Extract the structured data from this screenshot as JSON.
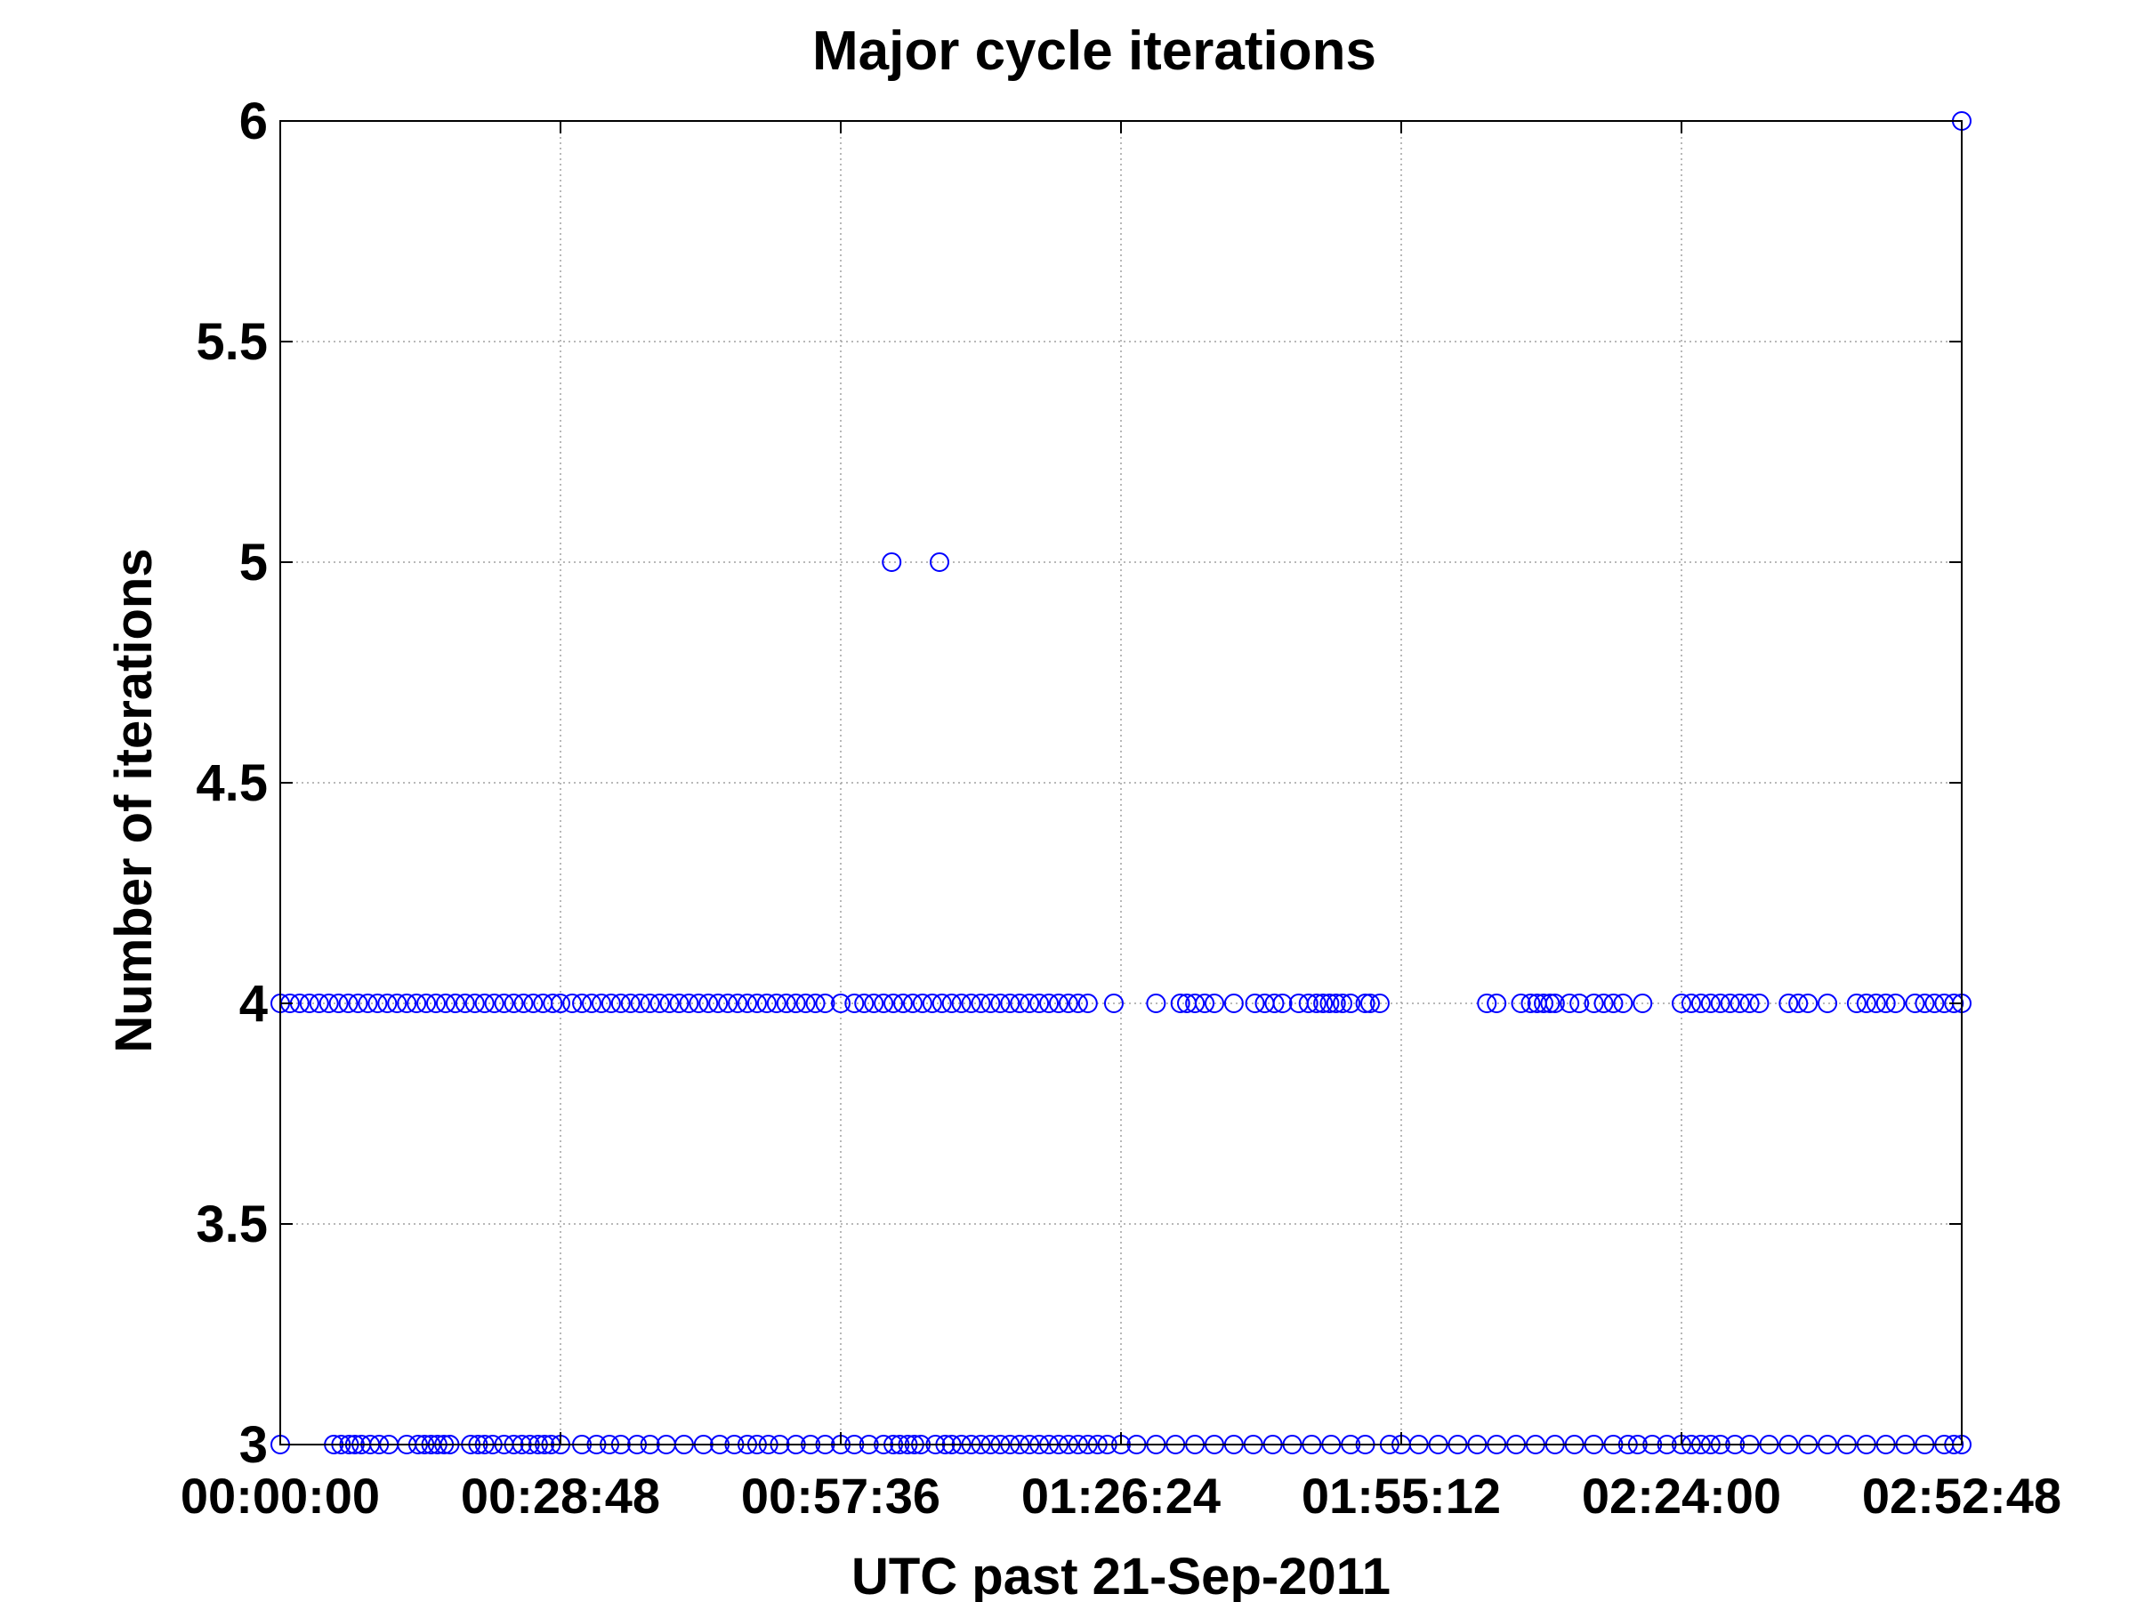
{
  "chart_data": {
    "type": "scatter",
    "title": "Major cycle iterations",
    "xlabel": "UTC past 21-Sep-2011",
    "ylabel": "Number of iterations",
    "x_unit": "time (HH:MM:SS)",
    "xlim": [
      "00:00:00",
      "02:52:48"
    ],
    "ylim": [
      3,
      6
    ],
    "x_ticks": [
      "00:00:00",
      "00:28:48",
      "00:57:36",
      "01:26:24",
      "01:55:12",
      "02:24:00",
      "02:52:48"
    ],
    "y_ticks": [
      "3",
      "3.5",
      "4",
      "4.5",
      "5",
      "5.5",
      "6"
    ],
    "grid": true,
    "marker": "circle-open",
    "marker_color": "#0000ff",
    "series": [
      {
        "y": 3,
        "x": [
          "00:00:00",
          "00:05:30",
          "00:06:15",
          "00:07:05",
          "00:07:40",
          "00:08:20",
          "00:09:15",
          "00:10:10",
          "00:11:10",
          "00:13:00",
          "00:14:10",
          "00:14:50",
          "00:15:30",
          "00:16:10",
          "00:16:50",
          "00:17:25",
          "00:19:35",
          "00:20:20",
          "00:21:00",
          "00:21:50",
          "00:23:00",
          "00:24:00",
          "00:24:50",
          "00:25:40",
          "00:26:30",
          "00:27:10",
          "00:27:50",
          "00:28:48",
          "00:31:00",
          "00:32:30",
          "00:33:50",
          "00:35:00",
          "00:36:40",
          "00:38:00",
          "00:39:40",
          "00:41:30",
          "00:43:30",
          "00:45:10",
          "00:46:40",
          "00:48:00",
          "00:49:00",
          "00:50:10",
          "00:51:20",
          "00:53:00",
          "00:54:30",
          "00:56:00",
          "00:57:36",
          "00:59:00",
          "01:00:30",
          "01:02:00",
          "01:03:00",
          "01:03:40",
          "01:04:30",
          "01:05:10",
          "01:05:50",
          "01:07:20",
          "01:08:20",
          "01:09:00",
          "01:10:00",
          "01:11:00",
          "01:12:00",
          "01:13:00",
          "01:14:00",
          "01:15:00",
          "01:16:00",
          "01:17:00",
          "01:18:00",
          "01:19:00",
          "01:20:00",
          "01:21:00",
          "01:22:00",
          "01:23:00",
          "01:24:00",
          "01:25:00",
          "01:26:24",
          "01:28:00",
          "01:30:00",
          "01:32:00",
          "01:34:00",
          "01:36:00",
          "01:38:00",
          "01:40:00",
          "01:42:00",
          "01:44:00",
          "01:46:00",
          "01:48:00",
          "01:50:00",
          "01:51:30",
          "01:54:00",
          "01:55:12",
          "01:57:00",
          "01:59:00",
          "02:01:00",
          "02:03:00",
          "02:05:00",
          "02:07:00",
          "02:09:00",
          "02:11:00",
          "02:13:00",
          "02:15:00",
          "02:17:00",
          "02:18:30",
          "02:19:30",
          "02:21:00",
          "02:22:30",
          "02:24:00",
          "02:25:00",
          "02:26:00",
          "02:27:00",
          "02:28:00",
          "02:29:30",
          "02:31:00",
          "02:33:00",
          "02:35:00",
          "02:37:00",
          "02:39:00",
          "02:41:00",
          "02:43:00",
          "02:45:00",
          "02:47:00",
          "02:49:00",
          "02:51:00",
          "02:52:00",
          "02:52:48"
        ]
      },
      {
        "y": 4,
        "x": [
          "00:00:00",
          "00:01:00",
          "00:02:00",
          "00:03:00",
          "00:04:00",
          "00:05:00",
          "00:06:00",
          "00:07:00",
          "00:08:00",
          "00:09:00",
          "00:10:00",
          "00:11:00",
          "00:12:00",
          "00:13:00",
          "00:14:00",
          "00:15:00",
          "00:16:00",
          "00:17:00",
          "00:18:00",
          "00:19:00",
          "00:20:00",
          "00:21:00",
          "00:22:00",
          "00:23:00",
          "00:24:00",
          "00:25:00",
          "00:26:00",
          "00:27:00",
          "00:28:00",
          "00:28:48",
          "00:30:00",
          "00:31:00",
          "00:32:00",
          "00:33:00",
          "00:34:00",
          "00:35:00",
          "00:36:00",
          "00:37:00",
          "00:38:00",
          "00:39:00",
          "00:40:00",
          "00:41:00",
          "00:42:00",
          "00:43:00",
          "00:44:00",
          "00:45:00",
          "00:46:00",
          "00:47:00",
          "00:48:00",
          "00:49:00",
          "00:50:00",
          "00:51:00",
          "00:52:00",
          "00:53:00",
          "00:54:00",
          "00:55:00",
          "00:56:00",
          "00:57:36",
          "00:59:00",
          "01:00:00",
          "01:01:00",
          "01:02:00",
          "01:03:00",
          "01:04:00",
          "01:05:00",
          "01:06:00",
          "01:07:00",
          "01:08:00",
          "01:09:00",
          "01:10:00",
          "01:11:00",
          "01:12:00",
          "01:13:00",
          "01:14:00",
          "01:15:00",
          "01:16:00",
          "01:17:00",
          "01:18:00",
          "01:19:00",
          "01:20:00",
          "01:21:00",
          "01:22:00",
          "01:23:00",
          "01:25:40",
          "01:30:00",
          "01:32:30",
          "01:33:10",
          "01:34:00",
          "01:35:00",
          "01:36:00",
          "01:38:00",
          "01:40:10",
          "01:41:10",
          "01:42:10",
          "01:43:00",
          "01:44:40",
          "01:45:40",
          "01:46:30",
          "01:47:10",
          "01:47:50",
          "01:48:30",
          "01:49:10",
          "01:50:00",
          "01:51:30",
          "01:52:00",
          "01:53:00",
          "02:04:00",
          "02:05:00",
          "02:07:30",
          "02:08:30",
          "02:09:10",
          "02:09:50",
          "02:10:30",
          "02:11:00",
          "02:12:30",
          "02:13:30",
          "02:15:00",
          "02:16:00",
          "02:17:00",
          "02:18:00",
          "02:20:00",
          "02:24:00",
          "02:25:00",
          "02:26:00",
          "02:27:00",
          "02:28:00",
          "02:29:00",
          "02:30:00",
          "02:31:00",
          "02:32:00",
          "02:35:00",
          "02:36:00",
          "02:37:00",
          "02:39:00",
          "02:42:00",
          "02:43:00",
          "02:44:00",
          "02:45:00",
          "02:46:00",
          "02:48:00",
          "02:49:00",
          "02:50:00",
          "02:51:00",
          "02:52:00",
          "02:52:48"
        ]
      },
      {
        "y": 5,
        "x": [
          "01:02:50",
          "01:07:45"
        ]
      },
      {
        "y": 6,
        "x": [
          "02:52:48"
        ]
      }
    ]
  }
}
